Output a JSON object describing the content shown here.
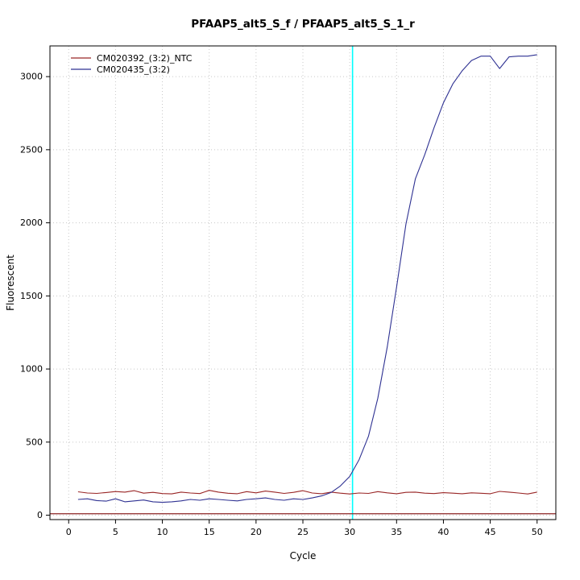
{
  "window": {
    "title": "PFAAP5_alt5_S_f / PFAAP5_alt5_S_1_r"
  },
  "chart_data": {
    "type": "line",
    "title": "PFAAP5_alt5_S_f / PFAAP5_alt5_S_1_r",
    "xlabel": "Cycle",
    "ylabel": "Fluorescent",
    "xlim": [
      -2,
      52
    ],
    "ylim": [
      -30,
      3210
    ],
    "xticks": [
      0,
      5,
      10,
      15,
      20,
      25,
      30,
      35,
      40,
      45,
      50
    ],
    "yticks": [
      0,
      500,
      1000,
      1500,
      2000,
      2500,
      3000
    ],
    "grid": true,
    "legend_position": "top-left",
    "threshold_line": {
      "y": 10,
      "color": "#8b2323"
    },
    "ct_line": {
      "x": 30.3,
      "color": "#00ffff"
    },
    "x": [
      1,
      2,
      3,
      4,
      5,
      6,
      7,
      8,
      9,
      10,
      11,
      12,
      13,
      14,
      15,
      16,
      17,
      18,
      19,
      20,
      21,
      22,
      23,
      24,
      25,
      26,
      27,
      28,
      29,
      30,
      31,
      32,
      33,
      34,
      35,
      36,
      37,
      38,
      39,
      40,
      41,
      42,
      43,
      44,
      45,
      46,
      47,
      48,
      49,
      50
    ],
    "series": [
      {
        "name": "CM020392_(3:2)_NTC",
        "color": "#992626",
        "values": [
          160,
          152,
          149,
          155,
          162,
          158,
          168,
          151,
          156,
          148,
          146,
          158,
          152,
          148,
          170,
          158,
          150,
          147,
          161,
          153,
          165,
          158,
          149,
          156,
          168,
          152,
          147,
          158,
          151,
          145,
          152,
          149,
          161,
          153,
          147,
          156,
          158,
          151,
          148,
          154,
          151,
          147,
          153,
          150,
          147,
          163,
          158,
          152,
          145,
          158
        ]
      },
      {
        "name": "CM020435_(3:2)",
        "color": "#2e3192",
        "values": [
          108,
          112,
          100,
          96,
          112,
          92,
          98,
          104,
          92,
          88,
          92,
          98,
          108,
          102,
          112,
          108,
          102,
          98,
          108,
          112,
          118,
          108,
          102,
          112,
          108,
          118,
          132,
          155,
          200,
          265,
          380,
          540,
          800,
          1150,
          1560,
          1990,
          2300,
          2465,
          2650,
          2820,
          2950,
          3040,
          3110,
          3140,
          3140,
          3055,
          3135,
          3140,
          3140,
          3150
        ]
      }
    ]
  }
}
